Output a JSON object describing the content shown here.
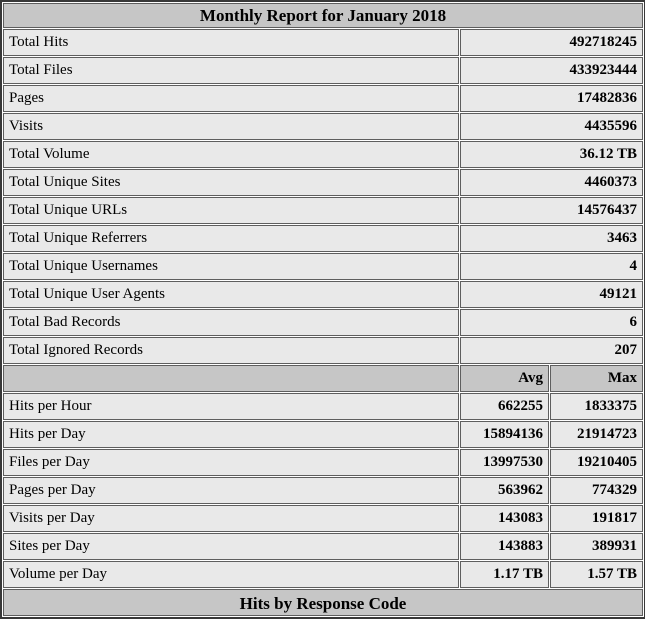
{
  "report": {
    "title": "Monthly Report for January 2018",
    "summary_rows": [
      {
        "label": "Total Hits",
        "value": "492718245"
      },
      {
        "label": "Total Files",
        "value": "433923444"
      },
      {
        "label": "Pages",
        "value": "17482836"
      },
      {
        "label": "Visits",
        "value": "4435596"
      },
      {
        "label": "Total Volume",
        "value": "36.12 TB"
      },
      {
        "label": "Total Unique Sites",
        "value": "4460373"
      },
      {
        "label": "Total Unique URLs",
        "value": "14576437"
      },
      {
        "label": "Total Unique Referrers",
        "value": "3463"
      },
      {
        "label": "Total Unique Usernames",
        "value": "4"
      },
      {
        "label": "Total Unique User Agents",
        "value": "49121"
      },
      {
        "label": "Total Bad Records",
        "value": "6"
      },
      {
        "label": "Total Ignored Records",
        "value": "207"
      }
    ],
    "avg_max_header": {
      "avg": "Avg",
      "max": "Max"
    },
    "avg_max_rows": [
      {
        "label": "Hits per Hour",
        "avg": "662255",
        "max": "1833375"
      },
      {
        "label": "Hits per Day",
        "avg": "15894136",
        "max": "21914723"
      },
      {
        "label": "Files per Day",
        "avg": "13997530",
        "max": "19210405"
      },
      {
        "label": "Pages per Day",
        "avg": "563962",
        "max": "774329"
      },
      {
        "label": "Visits per Day",
        "avg": "143083",
        "max": "191817"
      },
      {
        "label": "Sites per Day",
        "avg": "143883",
        "max": "389931"
      },
      {
        "label": "Volume per Day",
        "avg": "1.17 TB",
        "max": "1.57 TB"
      }
    ],
    "next_section_title": "Hits by Response Code"
  },
  "colors": {
    "header_bg": "#c6c6c6",
    "row_bg": "#e9e9e9",
    "cell_border": "#5e5e5e",
    "outer_border": "#383838",
    "text": "#000000"
  }
}
